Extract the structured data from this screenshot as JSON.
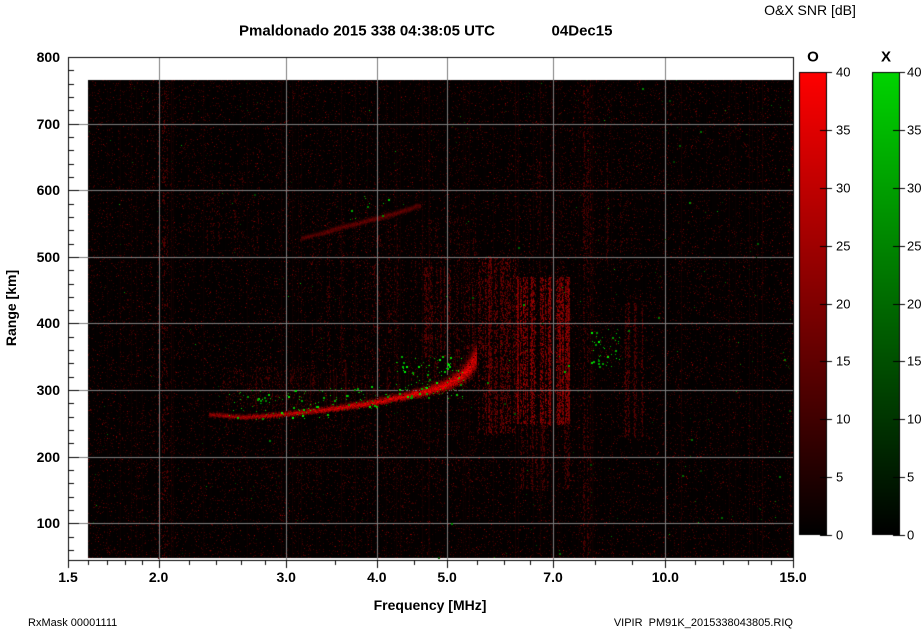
{
  "header": {
    "title": "Pmaldonado 2015 338 04:38:05 UTC",
    "date": "04Dec15"
  },
  "colorbar_panel": {
    "title": "O&X SNR [dB]",
    "o_label": "O",
    "x_label": "X"
  },
  "footer": {
    "rx_mask": "RxMask 00001111",
    "file": "VIPIR  PM91K_2015338043805.RIQ"
  },
  "chart_data": {
    "type": "heatmap",
    "title": "Pmaldonado 2015 338 04:38:05 UTC",
    "subtitle_date": "04Dec15",
    "xlabel": "Frequency [MHz]",
    "ylabel": "Range [km]",
    "x_scale": "log",
    "xlim": [
      1.5,
      15.0
    ],
    "ylim": [
      45,
      800
    ],
    "x_ticks": [
      1.5,
      2.0,
      3.0,
      4.0,
      5.0,
      7.0,
      10.0,
      15.0
    ],
    "x_tick_labels": [
      "1.5",
      "2.0",
      "3.0",
      "4.0",
      "5.0",
      "7.0",
      "10.0",
      "15.0"
    ],
    "x_minor_ticks": [
      1.6,
      1.7,
      1.8,
      1.9,
      2.2,
      2.4,
      2.6,
      2.8,
      3.5,
      4.5,
      5.5,
      6.0,
      6.5,
      8.0,
      9.0,
      11.0,
      12.0,
      13.0,
      14.0
    ],
    "y_ticks": [
      100,
      200,
      300,
      400,
      500,
      600,
      700,
      800
    ],
    "y_minor_step": 20,
    "grid": true,
    "grid_x": [
      2,
      3,
      4,
      5,
      7,
      10
    ],
    "grid_y": [
      100,
      200,
      300,
      400,
      500,
      600,
      700
    ],
    "grid_color": "#7d7d7d",
    "background": "#000000",
    "data_extent": {
      "f": [
        1.6,
        15.0
      ],
      "km": [
        48,
        765
      ]
    },
    "colorbars": [
      {
        "label": "O",
        "top_color": "#ff0000",
        "min": 0,
        "max": 40,
        "step": 5,
        "units": "dB"
      },
      {
        "label": "X",
        "top_color": "#00d400",
        "min": 0,
        "max": 40,
        "step": 5,
        "units": "dB"
      }
    ],
    "points_format": "[freq_MHz, range_km, halfwidth_km, brightness_0_255]",
    "traces": [
      {
        "name": "F-layer O-mode echo",
        "mode": "O",
        "spread": true,
        "points": [
          [
            2.35,
            263,
            5,
            150
          ],
          [
            2.6,
            259,
            5,
            190
          ],
          [
            2.9,
            262,
            6,
            205
          ],
          [
            3.2,
            267,
            6,
            220
          ],
          [
            3.6,
            274,
            7,
            232
          ],
          [
            4.0,
            282,
            8,
            238
          ],
          [
            4.4,
            291,
            9,
            242
          ],
          [
            4.7,
            298,
            11,
            246
          ],
          [
            5.0,
            308,
            14,
            250
          ],
          [
            5.2,
            318,
            18,
            250
          ],
          [
            5.35,
            330,
            24,
            246
          ],
          [
            5.5,
            350,
            30,
            228
          ]
        ]
      },
      {
        "name": "Second-hop echo",
        "mode": "O",
        "spread": false,
        "points": [
          [
            3.15,
            527,
            5,
            95
          ],
          [
            3.5,
            541,
            6,
            108
          ],
          [
            3.9,
            554,
            6,
            112
          ],
          [
            4.25,
            565,
            6,
            106
          ],
          [
            4.6,
            577,
            6,
            96
          ]
        ]
      }
    ],
    "x_mode_clusters": [
      {
        "f": [
          2.5,
          3.45
        ],
        "km": [
          256,
          300
        ],
        "n": 75,
        "bright": [
          130,
          255
        ]
      },
      {
        "f": [
          3.45,
          4.25
        ],
        "km": [
          270,
          306
        ],
        "n": 42,
        "bright": [
          120,
          240
        ]
      },
      {
        "f": [
          4.25,
          5.35
        ],
        "km": [
          288,
          352
        ],
        "n": 95,
        "bright": [
          140,
          255
        ]
      },
      {
        "f": [
          7.9,
          8.65
        ],
        "km": [
          335,
          392
        ],
        "n": 40,
        "bright": [
          140,
          255
        ]
      },
      {
        "f": [
          3.65,
          4.2
        ],
        "km": [
          556,
          596
        ],
        "n": 10,
        "bright": [
          130,
          230
        ]
      },
      {
        "f": [
          5.9,
          7.45
        ],
        "km": [
          300,
          460
        ],
        "n": 10,
        "bright": [
          110,
          200
        ]
      },
      {
        "f": [
          1.6,
          15.0
        ],
        "km": [
          48,
          765
        ],
        "n": 90,
        "bright": [
          60,
          150
        ]
      }
    ],
    "rfi_regions": [
      {
        "f": [
          1.98,
          2.12
        ],
        "km": [
          48,
          765
        ],
        "n": 650,
        "cols": 4,
        "base": 42,
        "spread": 55
      },
      {
        "f": [
          2.45,
          3.3
        ],
        "km": [
          275,
          335
        ],
        "n": 420,
        "cols": 0,
        "base": 38,
        "spread": 48
      },
      {
        "f": [
          3.25,
          5.5
        ],
        "km": [
          300,
          560
        ],
        "n": 1500,
        "cols": 42,
        "base": 38,
        "spread": 55
      },
      {
        "f": [
          4.6,
          5.6
        ],
        "km": [
          350,
          485
        ],
        "n": 800,
        "cols": 18,
        "base": 46,
        "spread": 62
      },
      {
        "f": [
          5.5,
          6.2
        ],
        "km": [
          235,
          500
        ],
        "n": 2400,
        "cols": 26,
        "base": 52,
        "spread": 72
      },
      {
        "f": [
          6.25,
          7.45
        ],
        "km": [
          250,
          470
        ],
        "n": 5200,
        "cols": 30,
        "base": 66,
        "spread": 100
      },
      {
        "f": [
          6.3,
          7.4
        ],
        "km": [
          150,
          255
        ],
        "n": 650,
        "cols": 18,
        "base": 44,
        "spread": 52
      },
      {
        "f": [
          6.0,
          9.0
        ],
        "km": [
          480,
          645
        ],
        "n": 520,
        "cols": 22,
        "base": 36,
        "spread": 46
      },
      {
        "f": [
          7.6,
          8.0
        ],
        "km": [
          48,
          765
        ],
        "n": 850,
        "cols": 6,
        "base": 40,
        "spread": 52
      },
      {
        "f": [
          8.8,
          9.35
        ],
        "km": [
          230,
          430
        ],
        "n": 700,
        "cols": 10,
        "base": 44,
        "spread": 58
      },
      {
        "f": [
          2.2,
          3.2
        ],
        "km": [
          500,
          625
        ],
        "n": 260,
        "cols": 10,
        "base": 34,
        "spread": 42
      },
      {
        "f": [
          2.35,
          5.5
        ],
        "km": [
          150,
          262
        ],
        "n": 520,
        "cols": 0,
        "base": 33,
        "spread": 42
      }
    ],
    "noise": {
      "speckle_count": 30000,
      "green_specks": 240
    }
  }
}
